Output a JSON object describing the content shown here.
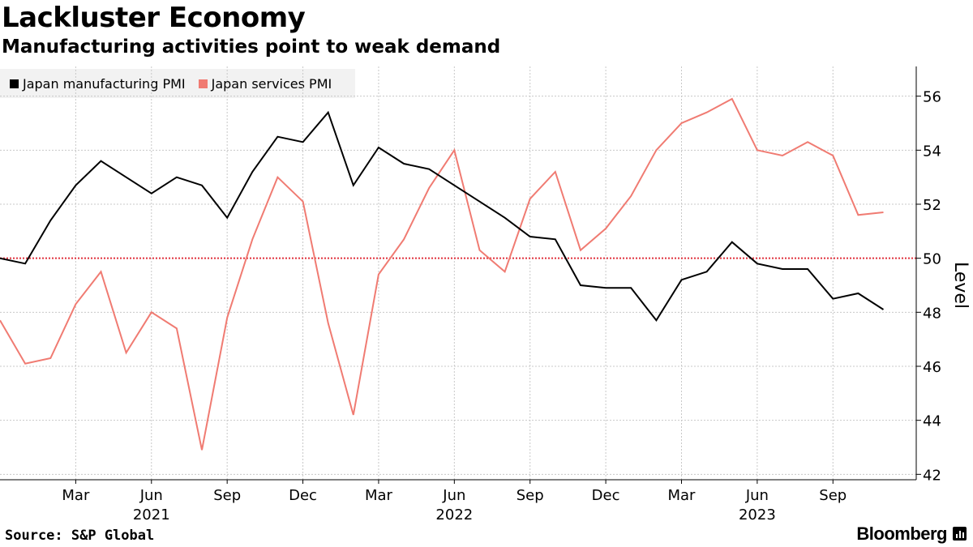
{
  "header": {
    "title": "Lackluster Economy",
    "subtitle": "Manufacturing activities point to weak demand"
  },
  "legend": [
    {
      "label": "Japan manufacturing PMI",
      "color": "#000000"
    },
    {
      "label": "Japan services PMI",
      "color": "#f07b72"
    }
  ],
  "footer": {
    "source": "Source: S&P Global",
    "brand": "Bloomberg"
  },
  "chart_data": {
    "type": "line",
    "title": "Lackluster Economy",
    "subtitle": "Manufacturing activities point to weak demand",
    "ylabel": "Level",
    "ylim": [
      41.8,
      57.1
    ],
    "yticks": [
      42,
      44,
      46,
      48,
      50,
      52,
      54,
      56
    ],
    "xlim": [
      0,
      36.3
    ],
    "x_month_ticks": [
      {
        "x": 3,
        "label": "Mar"
      },
      {
        "x": 6,
        "label": "Jun"
      },
      {
        "x": 9,
        "label": "Sep"
      },
      {
        "x": 12,
        "label": "Dec"
      },
      {
        "x": 15,
        "label": "Mar"
      },
      {
        "x": 18,
        "label": "Jun"
      },
      {
        "x": 21,
        "label": "Sep"
      },
      {
        "x": 24,
        "label": "Dec"
      },
      {
        "x": 27,
        "label": "Mar"
      },
      {
        "x": 30,
        "label": "Jun"
      },
      {
        "x": 33,
        "label": "Sep"
      }
    ],
    "x_year_labels": [
      {
        "x": 6,
        "label": "2021"
      },
      {
        "x": 18,
        "label": "2022"
      },
      {
        "x": 30,
        "label": "2023"
      }
    ],
    "reference_line": {
      "y": 50,
      "color": "#e0303c",
      "style": "dotted"
    },
    "grid": true,
    "legend_position": "top-left",
    "series": [
      {
        "name": "Japan manufacturing PMI",
        "color": "#000000",
        "x": [
          0,
          1,
          2,
          3,
          4,
          5,
          6,
          7,
          8,
          9,
          10,
          11,
          12,
          13,
          14,
          15,
          16,
          17,
          18,
          19,
          20,
          21,
          22,
          23,
          24,
          25,
          26,
          27,
          28,
          29,
          30,
          31,
          32,
          33,
          34,
          35
        ],
        "values": [
          50.0,
          49.8,
          51.4,
          52.7,
          53.6,
          53.0,
          52.4,
          53.0,
          52.7,
          51.5,
          53.2,
          54.5,
          54.3,
          55.4,
          52.7,
          54.1,
          53.5,
          53.3,
          52.7,
          52.1,
          51.5,
          50.8,
          50.7,
          49.0,
          48.9,
          48.9,
          47.7,
          49.2,
          49.5,
          50.6,
          49.8,
          49.6,
          49.6,
          48.5,
          48.7,
          48.1
        ]
      },
      {
        "name": "Japan services PMI",
        "color": "#f07b72",
        "x": [
          0,
          1,
          2,
          3,
          4,
          5,
          6,
          7,
          8,
          9,
          10,
          11,
          12,
          13,
          14,
          15,
          16,
          17,
          18,
          19,
          20,
          21,
          22,
          23,
          24,
          25,
          26,
          27,
          28,
          29,
          30,
          31,
          32,
          33,
          34,
          35
        ],
        "values": [
          47.7,
          46.1,
          46.3,
          48.3,
          49.5,
          46.5,
          48.0,
          47.4,
          42.9,
          47.8,
          50.7,
          53.0,
          52.1,
          47.6,
          44.2,
          49.4,
          50.7,
          52.6,
          54.0,
          50.3,
          49.5,
          52.2,
          53.2,
          50.3,
          51.1,
          52.3,
          54.0,
          55.0,
          55.4,
          55.9,
          54.0,
          53.8,
          54.3,
          53.8,
          51.6,
          51.7
        ]
      }
    ]
  }
}
